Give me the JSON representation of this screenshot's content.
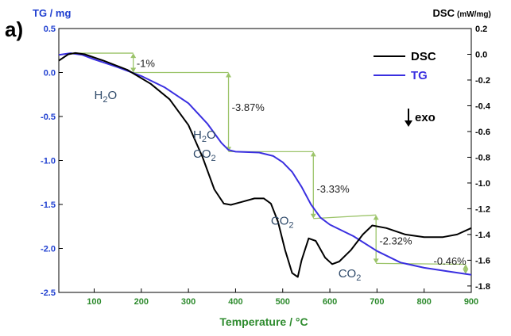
{
  "panel_label": "a)",
  "colors": {
    "left_axis": "#1f3fd0",
    "right_axis": "#000000",
    "x_axis": "#2e8b2e",
    "tg": "#3a2fe0",
    "dsc": "#000000",
    "guide": "#9cc46a",
    "chem": "#2f4a6a"
  },
  "chart_data": {
    "type": "line",
    "title": "",
    "xlabel": "Temperature / °C",
    "ylabel_left": "TG / mg",
    "ylabel_right_main": "DSC",
    "ylabel_right_unit": "(mW/mg)",
    "xlim": [
      25,
      900
    ],
    "ylim_left": [
      -2.5,
      0.5
    ],
    "ylim_right": [
      -1.85,
      0.2
    ],
    "x_ticks": [
      100,
      200,
      300,
      400,
      500,
      600,
      700,
      800,
      900
    ],
    "y_left_ticks": [
      -2.5,
      -2.0,
      -1.5,
      -1.0,
      -0.5,
      0.0,
      0.5
    ],
    "y_left_tick_labels": [
      "-2.5",
      "-2.0",
      "-1.5",
      "-1.0",
      "-0.5",
      "0.0",
      "0.5"
    ],
    "y_right_ticks": [
      0.2,
      0.0,
      -0.2,
      -0.4,
      -0.6,
      -0.8,
      -1.0,
      -1.2,
      -1.4,
      -1.6,
      -1.8
    ],
    "y_right_tick_labels": [
      "0.2",
      "0.0",
      "-0.2",
      "-0.4",
      "-0.6",
      "-0.8",
      "-1.0",
      "-1.2",
      "-1.4",
      "-1.6",
      "-1.8"
    ],
    "legend": {
      "position": "top-right",
      "entries": [
        "DSC",
        "TG"
      ]
    },
    "exo_label": "exo",
    "series": [
      {
        "name": "TG",
        "axis": "left",
        "x": [
          25,
          50,
          75,
          100,
          150,
          200,
          250,
          300,
          340,
          370,
          385,
          400,
          450,
          480,
          500,
          520,
          540,
          560,
          580,
          600,
          650,
          700,
          750,
          800,
          850,
          900
        ],
        "y": [
          0.2,
          0.22,
          0.2,
          0.15,
          0.06,
          -0.04,
          -0.17,
          -0.35,
          -0.58,
          -0.8,
          -0.88,
          -0.9,
          -0.91,
          -0.95,
          -1.02,
          -1.13,
          -1.3,
          -1.5,
          -1.65,
          -1.73,
          -1.86,
          -2.03,
          -2.16,
          -2.22,
          -2.26,
          -2.3
        ]
      },
      {
        "name": "DSC",
        "axis": "right",
        "x": [
          25,
          45,
          60,
          80,
          120,
          170,
          220,
          260,
          300,
          330,
          355,
          375,
          390,
          410,
          440,
          460,
          475,
          490,
          505,
          520,
          532,
          540,
          555,
          570,
          590,
          605,
          620,
          645,
          670,
          690,
          720,
          760,
          800,
          840,
          870,
          900
        ],
        "y": [
          -0.05,
          0.0,
          0.01,
          0.0,
          -0.05,
          -0.12,
          -0.23,
          -0.35,
          -0.55,
          -0.8,
          -1.05,
          -1.16,
          -1.17,
          -1.15,
          -1.12,
          -1.12,
          -1.16,
          -1.3,
          -1.52,
          -1.7,
          -1.73,
          -1.6,
          -1.43,
          -1.45,
          -1.58,
          -1.63,
          -1.61,
          -1.52,
          -1.4,
          -1.33,
          -1.35,
          -1.4,
          -1.42,
          -1.42,
          -1.4,
          -1.35
        ]
      }
    ],
    "annotations": [
      {
        "text": "H",
        "sub": "2",
        "rest": "O",
        "x": 100,
        "y": -0.3
      },
      {
        "text": "H",
        "sub": "2",
        "rest": "O",
        "x": 310,
        "y": -0.75
      },
      {
        "text": "CO",
        "sub": "2",
        "rest": "",
        "x": 310,
        "y": -0.97
      },
      {
        "text": "CO",
        "sub": "2",
        "rest": "",
        "x": 475,
        "y": -1.73
      },
      {
        "text": "CO",
        "sub": "2",
        "rest": "",
        "x": 618,
        "y": -2.33
      }
    ],
    "mass_losses": [
      {
        "label": "-1%",
        "x": 183,
        "y_top": 0.22,
        "y_bottom": 0.0,
        "label_x": 190,
        "label_y": 0.1
      },
      {
        "label": "-3.87%",
        "x": 385,
        "y_top": 0.0,
        "y_bottom": -0.9,
        "label_x": 392,
        "label_y": -0.4
      },
      {
        "label": "-3.33%",
        "x": 565,
        "y_top": -0.9,
        "y_bottom": -1.66,
        "label_x": 572,
        "label_y": -1.33
      },
      {
        "label": "-2.32%",
        "x": 698,
        "y_top": -1.62,
        "y_bottom": -2.17,
        "label_x": 705,
        "label_y": -1.92
      },
      {
        "label": "-0.46%",
        "x": 888,
        "y_top": -2.18,
        "y_bottom": -2.29,
        "label_x": 820,
        "label_y": -2.15
      }
    ],
    "guide_lines": [
      {
        "x1": 60,
        "y1": 0.22,
        "x2": 183,
        "y2": 0.22
      },
      {
        "x1": 183,
        "y1": 0.0,
        "x2": 385,
        "y2": 0.0
      },
      {
        "x1": 385,
        "y1": -0.9,
        "x2": 565,
        "y2": -0.9
      },
      {
        "x1": 565,
        "y1": -1.66,
        "x2": 698,
        "y2": -1.62
      },
      {
        "x1": 698,
        "y1": -2.17,
        "x2": 888,
        "y2": -2.18
      }
    ]
  }
}
